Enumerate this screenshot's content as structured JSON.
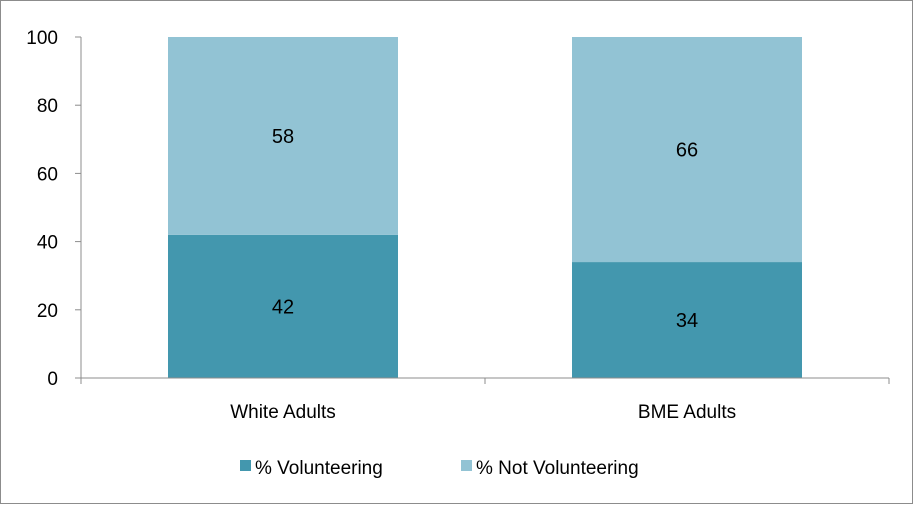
{
  "chart_data": {
    "type": "bar",
    "stacked": true,
    "categories": [
      "White Adults",
      "BME Adults"
    ],
    "series": [
      {
        "name": "% Volunteering",
        "values": [
          42,
          34
        ],
        "color": "#4397ae"
      },
      {
        "name": "% Not Volunteering",
        "values": [
          58,
          66
        ],
        "color": "#92c3d4"
      }
    ],
    "ylim": [
      0,
      100
    ],
    "yticks": [
      "0",
      "20",
      "40",
      "60",
      "80",
      "100"
    ],
    "title": "",
    "xlabel": "",
    "ylabel": "",
    "legend_position": "bottom",
    "grid": false
  }
}
